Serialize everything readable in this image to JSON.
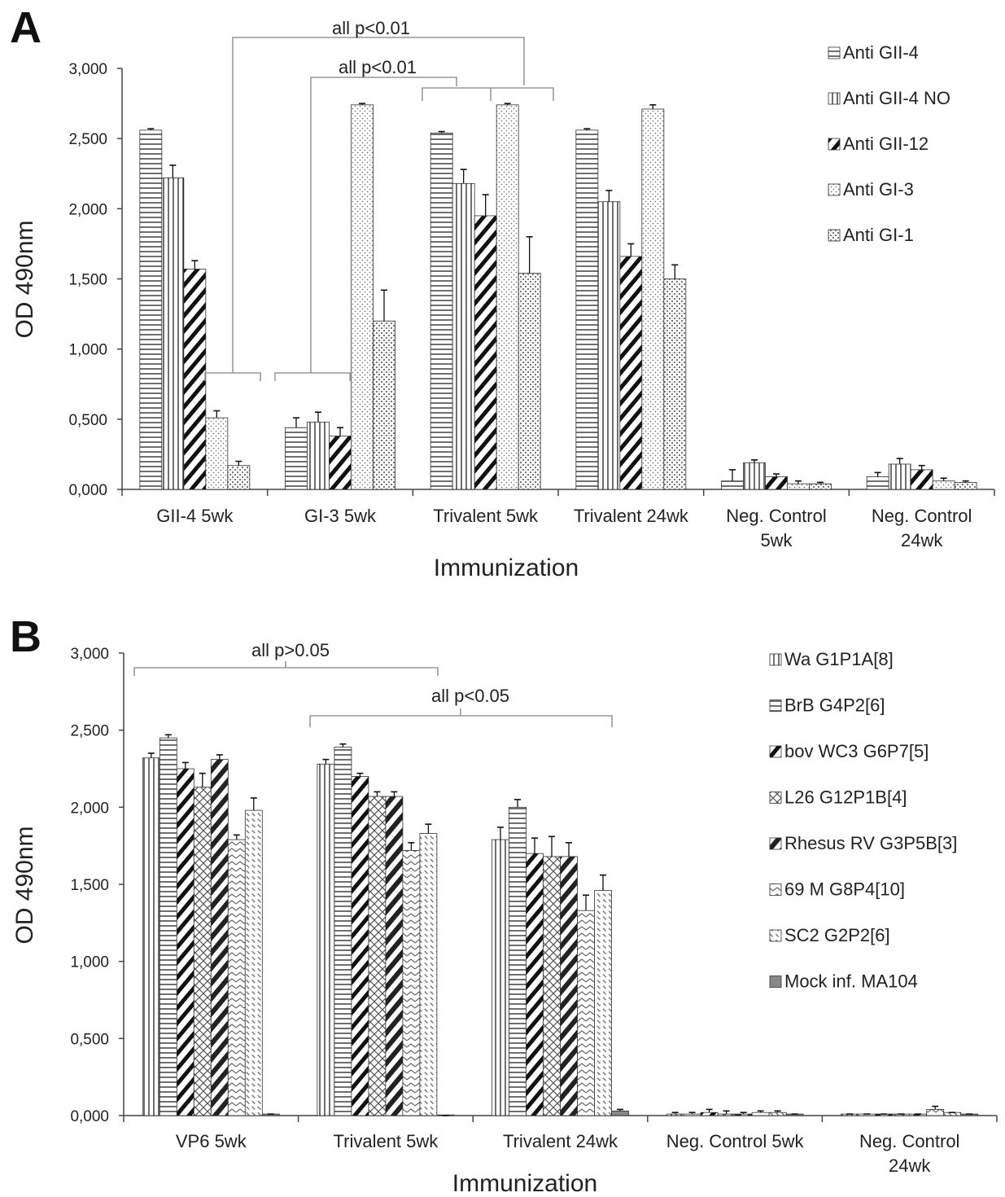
{
  "chart_data": [
    {
      "panel": "A",
      "type": "bar",
      "ylabel": "OD 490nm",
      "xlabel": "Immunization",
      "ylim": [
        0,
        3
      ],
      "y_ticks": [
        "0,000",
        "0,500",
        "1,000",
        "1,500",
        "2,000",
        "2,500",
        "3,000"
      ],
      "grid": false,
      "legend_position": "top-right",
      "categories": [
        [
          "GII-4 5wk"
        ],
        [
          "GI-3 5wk"
        ],
        [
          "Trivalent 5wk"
        ],
        [
          "Trivalent 24wk"
        ],
        [
          "Neg. Control",
          "5wk"
        ],
        [
          "Neg. Control",
          "24wk"
        ]
      ],
      "series": [
        {
          "name": "Anti GII-4",
          "pattern": "hlines",
          "values": [
            2.56,
            0.44,
            2.54,
            2.56,
            0.06,
            0.09
          ],
          "errors": [
            0.01,
            0.07,
            0.01,
            0.01,
            0.08,
            0.03
          ]
        },
        {
          "name": "Anti GII-4 NO",
          "pattern": "vlines",
          "values": [
            2.22,
            0.48,
            2.18,
            2.05,
            0.19,
            0.18
          ],
          "errors": [
            0.09,
            0.07,
            0.1,
            0.08,
            0.02,
            0.04
          ]
        },
        {
          "name": "Anti GII-12",
          "pattern": "diag",
          "values": [
            1.57,
            0.38,
            1.95,
            1.66,
            0.09,
            0.14
          ],
          "errors": [
            0.06,
            0.06,
            0.15,
            0.09,
            0.02,
            0.03
          ]
        },
        {
          "name": "Anti GI-3",
          "pattern": "dots",
          "values": [
            0.51,
            2.74,
            2.74,
            2.71,
            0.04,
            0.06
          ],
          "errors": [
            0.05,
            0.01,
            0.01,
            0.03,
            0.02,
            0.02
          ]
        },
        {
          "name": "Anti GI-1",
          "pattern": "checker",
          "values": [
            0.17,
            1.2,
            1.54,
            1.5,
            0.04,
            0.05
          ],
          "errors": [
            0.03,
            0.22,
            0.26,
            0.1,
            0.01,
            0.01
          ]
        }
      ],
      "annotations": [
        "all p<0.01",
        "all p<0.01"
      ]
    },
    {
      "panel": "B",
      "type": "bar",
      "ylabel": "OD 490nm",
      "xlabel": "Immunization",
      "ylim": [
        0,
        3
      ],
      "y_ticks": [
        "0,000",
        "0,500",
        "1,000",
        "1,500",
        "2,000",
        "2,500",
        "3,000"
      ],
      "grid": false,
      "legend_position": "right",
      "categories": [
        [
          "VP6 5wk"
        ],
        [
          "Trivalent 5wk"
        ],
        [
          "Trivalent 24wk"
        ],
        [
          "Neg. Control 5wk"
        ],
        [
          "Neg. Control",
          "24wk"
        ]
      ],
      "series": [
        {
          "name": "Wa G1P1A[8]",
          "pattern": "vlines",
          "values": [
            2.32,
            2.28,
            1.79,
            0.01,
            0.01
          ],
          "errors": [
            0.03,
            0.03,
            0.08,
            0.01,
            0.0
          ]
        },
        {
          "name": "BrB G4P2[6]",
          "pattern": "hlines",
          "values": [
            2.45,
            2.39,
            2.0,
            0.01,
            0.01
          ],
          "errors": [
            0.02,
            0.02,
            0.05,
            0.01,
            0.0
          ]
        },
        {
          "name": "bov WC3 G6P7[5]",
          "pattern": "diag",
          "values": [
            2.25,
            2.2,
            1.7,
            0.02,
            0.01
          ],
          "errors": [
            0.04,
            0.02,
            0.1,
            0.02,
            0.0
          ]
        },
        {
          "name": "L26 G12P1B[4]",
          "pattern": "cross",
          "values": [
            2.13,
            2.07,
            1.68,
            0.01,
            0.01
          ],
          "errors": [
            0.09,
            0.03,
            0.13,
            0.02,
            0.0
          ]
        },
        {
          "name": "Rhesus RV G3P5B[3]",
          "pattern": "thickdiag",
          "values": [
            2.31,
            2.07,
            1.68,
            0.01,
            0.01
          ],
          "errors": [
            0.03,
            0.03,
            0.09,
            0.01,
            0.0
          ]
        },
        {
          "name": "69 M G8P4[10]",
          "pattern": "zigzag",
          "values": [
            1.79,
            1.72,
            1.33,
            0.02,
            0.04
          ],
          "errors": [
            0.03,
            0.05,
            0.1,
            0.01,
            0.02
          ]
        },
        {
          "name": "SC2 G2P2[6]",
          "pattern": "dashdiag",
          "values": [
            1.98,
            1.83,
            1.46,
            0.02,
            0.02
          ],
          "errors": [
            0.08,
            0.06,
            0.1,
            0.01,
            0.0
          ]
        },
        {
          "name": "Mock inf. MA104",
          "pattern": "solidgray",
          "values": [
            0.01,
            0.0,
            0.03,
            0.01,
            0.01
          ],
          "errors": [
            0.0,
            0.0,
            0.01,
            0.0,
            0.0
          ]
        }
      ],
      "annotations": [
        "all p>0.05",
        "all p<0.05"
      ]
    }
  ]
}
